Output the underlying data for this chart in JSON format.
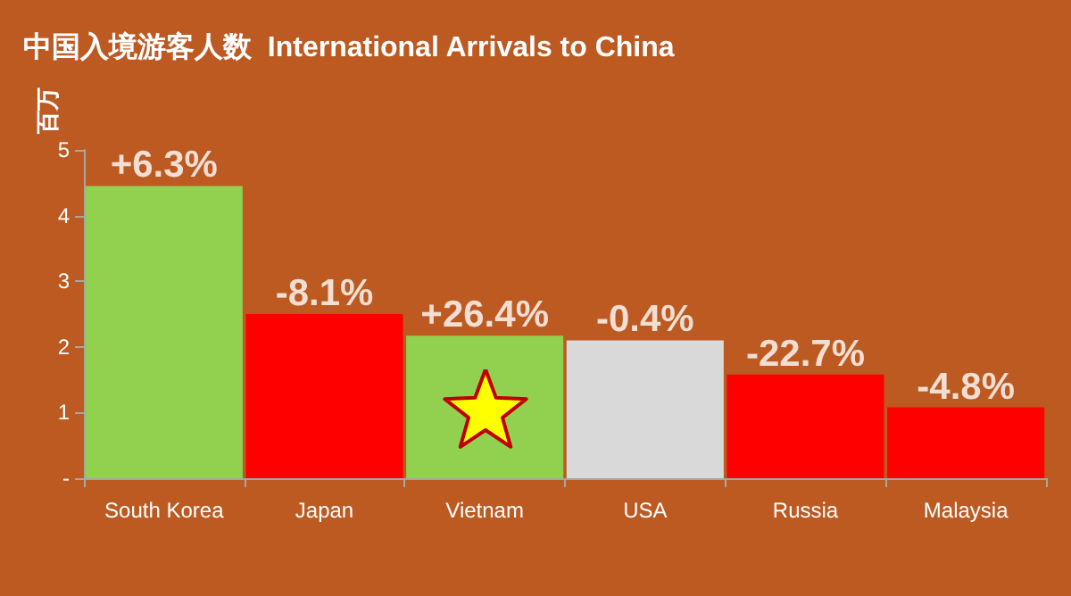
{
  "chart_data": {
    "type": "bar",
    "title": "中国入境游客人数  International Arrivals to China",
    "ylabel": "百万",
    "categories": [
      "South Korea",
      "Japan",
      "Vietnam",
      "USA",
      "Russia",
      "Malaysia"
    ],
    "values": [
      4.45,
      2.5,
      2.17,
      2.1,
      1.58,
      1.08
    ],
    "colors": [
      "#92d050",
      "#ff0000",
      "#92d050",
      "#d9d9d9",
      "#ff0000",
      "#ff0000"
    ],
    "annotations": [
      {
        "text": "+6.3%",
        "x": "South Korea",
        "y": 4.45
      },
      {
        "text": "-8.1%",
        "x": "Japan",
        "y": 2.5
      },
      {
        "text": "+26.4%",
        "x": "Vietnam",
        "y": 2.17
      },
      {
        "text": "-0.4%",
        "x": "USA",
        "y": 2.1
      },
      {
        "text": "-22.7%",
        "x": "Russia",
        "y": 1.58
      },
      {
        "text": "-4.8%",
        "x": "Malaysia",
        "y": 1.08
      }
    ],
    "ylim": [
      0,
      5
    ],
    "yticks": [
      {
        "value": 0,
        "label": "-"
      },
      1,
      2,
      3,
      4,
      5
    ],
    "grid": false
  }
}
